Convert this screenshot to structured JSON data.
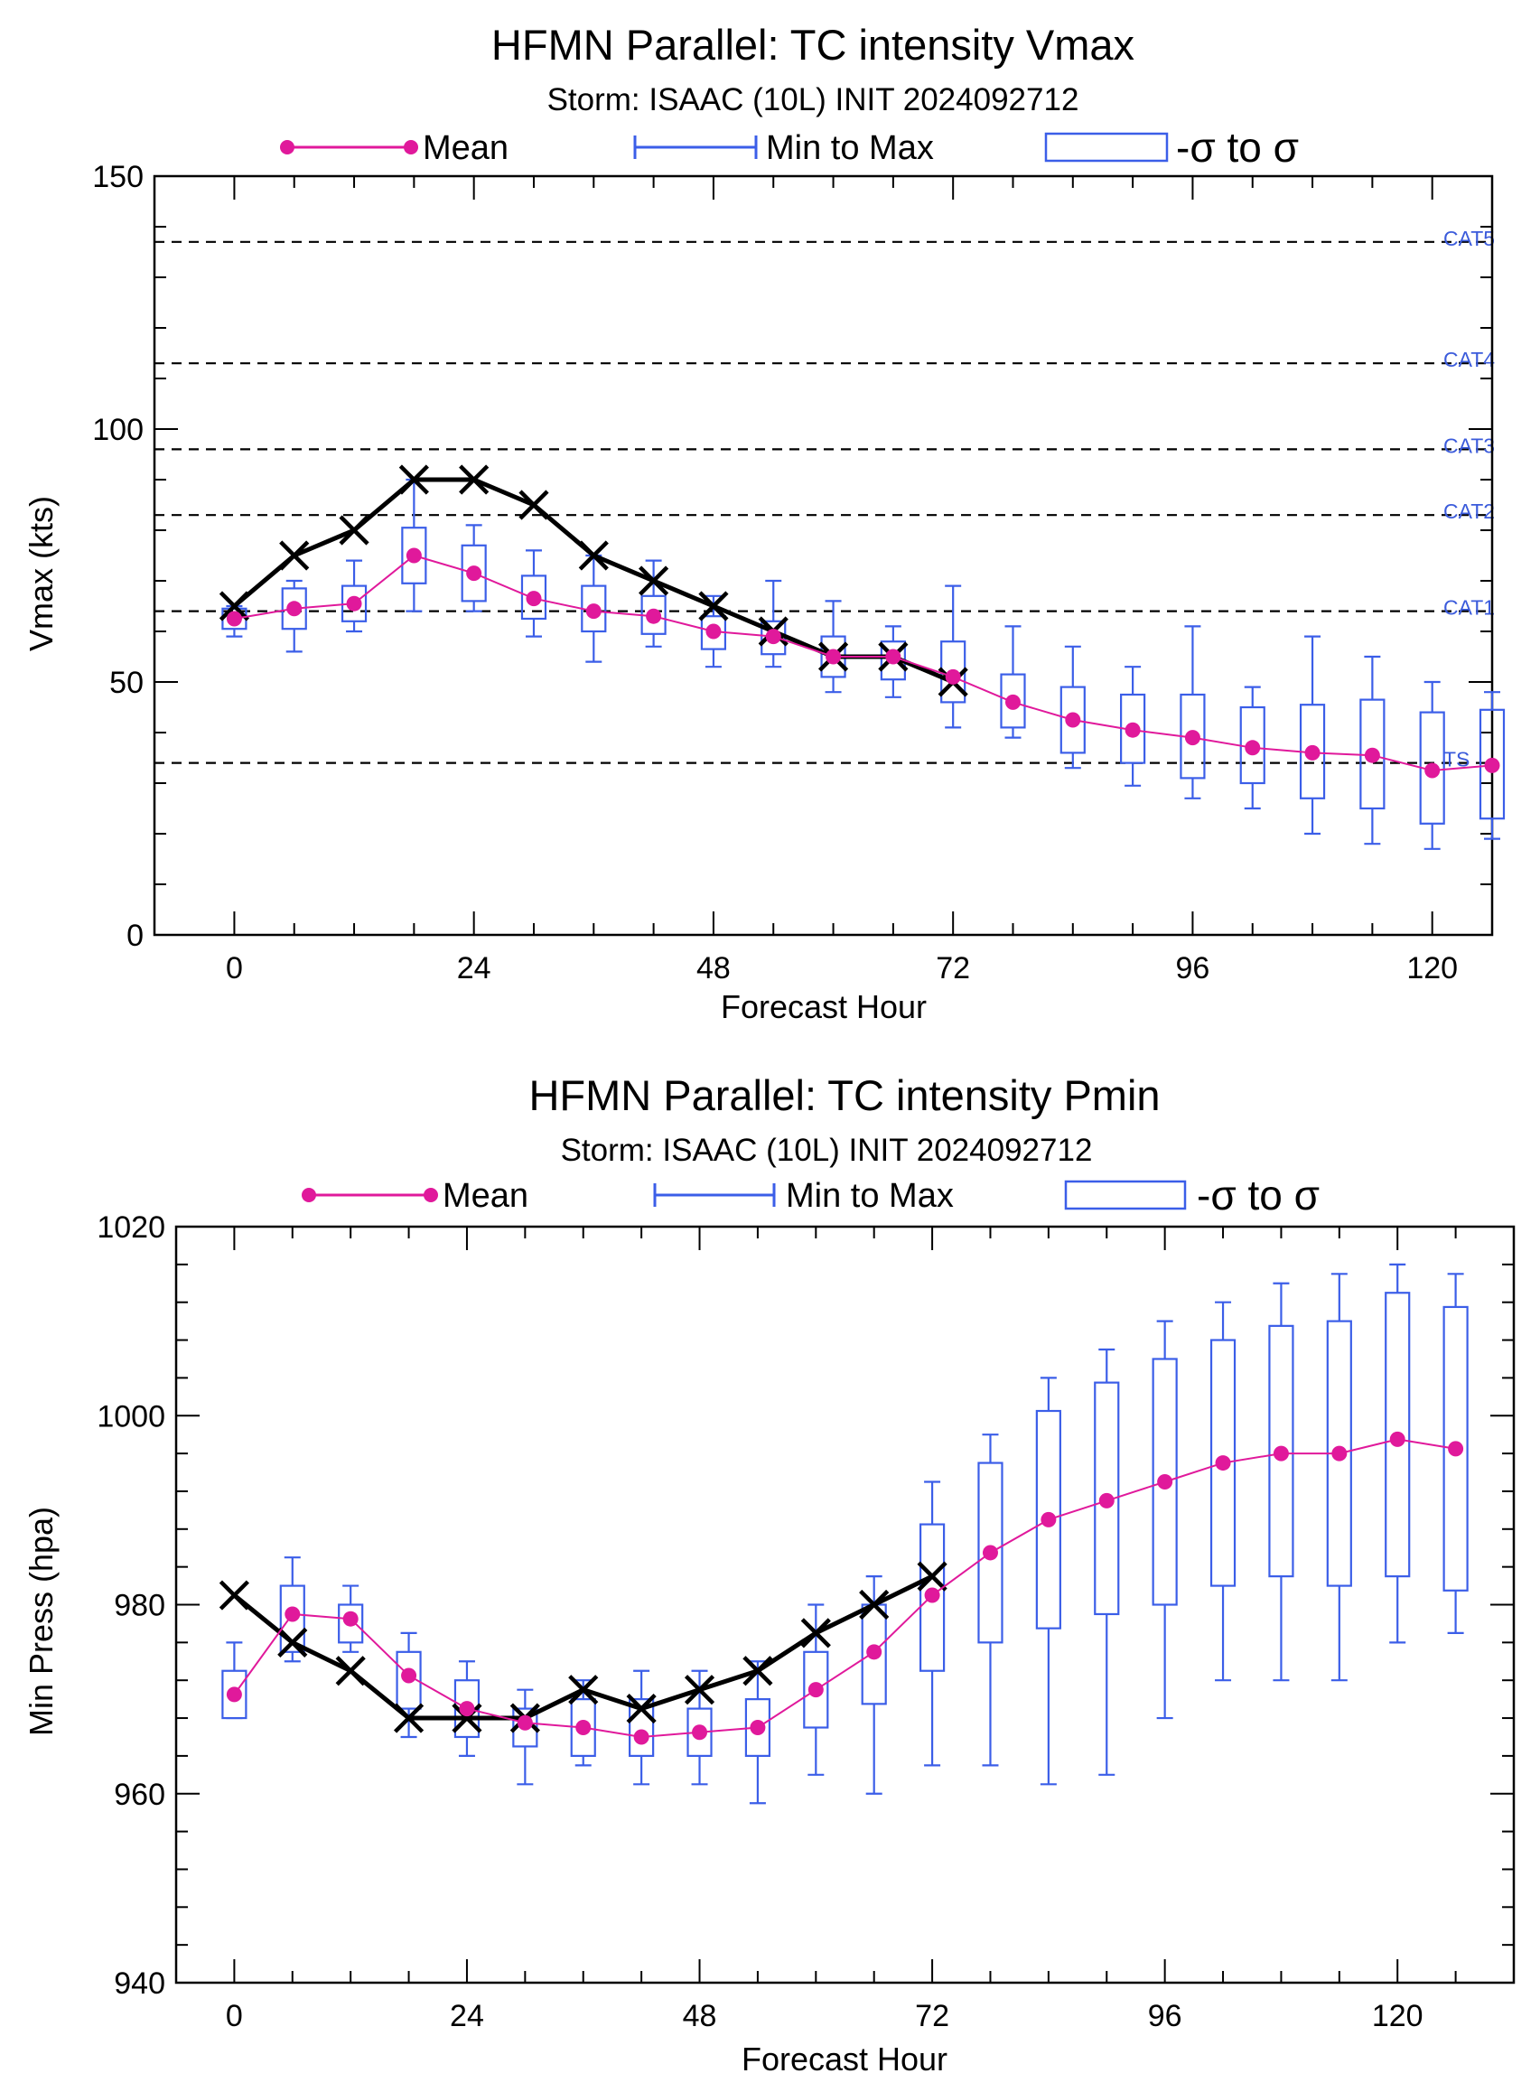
{
  "colors": {
    "mean": "#e0199b",
    "range": "#3b5ee8",
    "observed": "#000000",
    "reference_line": "#000000",
    "category_label": "#3b5bdb"
  },
  "icons": {
    "observed_marker": "x-marker-icon",
    "mean_marker": "filled-circle-icon"
  },
  "chart_data": [
    {
      "type": "line",
      "title": "HFMN Parallel: TC intensity Vmax",
      "subtitle": "Storm: ISAAC (10L) INIT 2024092712",
      "xlabel": "Forecast Hour",
      "ylabel": "Vmax (kts)",
      "xlim": [
        -8,
        126
      ],
      "ylim": [
        0,
        150
      ],
      "xticks": [
        0,
        24,
        48,
        72,
        96,
        120
      ],
      "yticks": [
        0,
        50,
        100,
        150
      ],
      "grid": false,
      "legend_position": "top",
      "legend": {
        "mean": "Mean",
        "range": "Min to Max",
        "sigma": "-σ to σ"
      },
      "reference_lines": [
        {
          "label": "TS",
          "value": 34
        },
        {
          "label": "CAT1",
          "value": 64
        },
        {
          "label": "CAT2",
          "value": 83
        },
        {
          "label": "CAT3",
          "value": 96
        },
        {
          "label": "CAT4",
          "value": 113
        },
        {
          "label": "CAT5",
          "value": 137
        }
      ],
      "x": [
        0,
        6,
        12,
        18,
        24,
        30,
        36,
        42,
        48,
        54,
        60,
        66,
        72,
        78,
        84,
        90,
        96,
        102,
        108,
        114,
        120,
        126
      ],
      "mean": [
        62.5,
        64.5,
        65.5,
        75,
        71.5,
        66.5,
        64,
        63,
        60,
        59,
        55,
        55,
        51,
        46,
        42.5,
        40.5,
        39,
        37,
        36,
        35.5,
        32.5,
        33.5
      ],
      "min": [
        59,
        56,
        60,
        64,
        64,
        59,
        54,
        57,
        53,
        53,
        48,
        47,
        41,
        39,
        33,
        29.5,
        27,
        25,
        20,
        18,
        17,
        19
      ],
      "max": [
        65,
        70,
        74,
        90,
        81,
        76,
        75,
        74,
        67,
        70,
        66,
        61,
        69,
        61,
        57,
        53,
        61,
        49,
        59,
        55,
        50,
        48
      ],
      "sigma_low": [
        60.5,
        60.5,
        62,
        69.5,
        66,
        62.5,
        60,
        59.5,
        56.5,
        55.5,
        51,
        50.5,
        46,
        41,
        36,
        34,
        31,
        30,
        27,
        25,
        22,
        23
      ],
      "sigma_high": [
        64.5,
        68.5,
        69,
        80.5,
        77,
        71,
        69,
        67,
        63,
        62,
        59,
        58,
        58,
        51.5,
        49,
        47.5,
        47.5,
        45,
        45.5,
        46.5,
        44,
        44.5
      ],
      "observed_x": [
        0,
        6,
        12,
        18,
        24,
        30,
        36,
        42,
        48,
        54,
        60,
        66,
        72
      ],
      "observed": [
        65,
        75,
        80,
        90,
        90,
        85,
        75,
        70,
        65,
        60,
        55,
        55,
        50
      ]
    },
    {
      "type": "line",
      "title": "HFMN Parallel: TC intensity Pmin",
      "subtitle": "Storm: ISAAC (10L) INIT 2024092712",
      "xlabel": "Forecast Hour",
      "ylabel": "Min Press (hpa)",
      "xlim": [
        -6,
        132
      ],
      "ylim": [
        940,
        1020
      ],
      "xticks": [
        0,
        24,
        48,
        72,
        96,
        120
      ],
      "yticks": [
        940,
        960,
        980,
        1000,
        1020
      ],
      "grid": false,
      "legend_position": "top",
      "legend": {
        "mean": "Mean",
        "range": "Min to Max",
        "sigma": "-σ to σ"
      },
      "x": [
        0,
        6,
        12,
        18,
        24,
        30,
        36,
        42,
        48,
        54,
        60,
        66,
        72,
        78,
        84,
        90,
        96,
        102,
        108,
        114,
        120,
        126
      ],
      "mean": [
        970.5,
        979,
        978.5,
        972.5,
        969,
        967.5,
        967,
        966,
        966.5,
        967,
        971,
        975,
        981,
        985.5,
        989,
        991,
        993,
        995,
        996,
        996,
        997.5,
        996.5
      ],
      "min": [
        968,
        974,
        975,
        966,
        964,
        961,
        963,
        961,
        961,
        959,
        962,
        960,
        963,
        963,
        961,
        962,
        968,
        972,
        972,
        972,
        976,
        977
      ],
      "max": [
        976,
        985,
        982,
        977,
        974,
        971,
        972,
        973,
        973,
        974,
        980,
        983,
        993,
        998,
        1004,
        1007,
        1010,
        1012,
        1014,
        1015,
        1016,
        1015
      ],
      "sigma_low": [
        968,
        975,
        976,
        969,
        966,
        965,
        964,
        964,
        964,
        964,
        967,
        969.5,
        973,
        976,
        977.5,
        979,
        980,
        982,
        983,
        982,
        983,
        981.5
      ],
      "sigma_high": [
        973,
        982,
        980,
        975,
        972,
        969,
        970,
        970,
        969,
        970,
        975,
        980,
        988.5,
        995,
        1000.5,
        1003.5,
        1006,
        1008,
        1009.5,
        1010,
        1013,
        1011.5
      ],
      "observed_x": [
        0,
        6,
        12,
        18,
        24,
        30,
        36,
        42,
        48,
        54,
        60,
        66,
        72
      ],
      "observed": [
        981,
        976,
        973,
        968,
        968,
        968,
        971,
        969,
        971,
        973,
        977,
        980,
        983
      ]
    }
  ]
}
